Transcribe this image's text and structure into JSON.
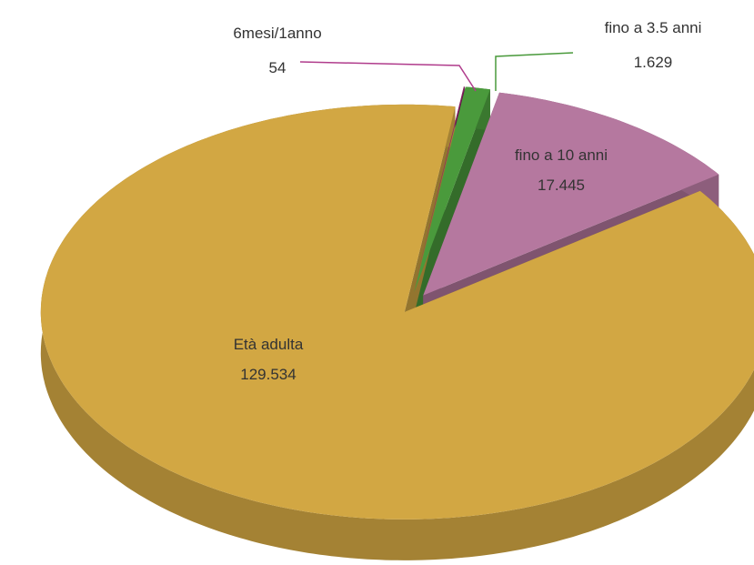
{
  "chart_data": {
    "type": "pie",
    "categories": [
      "6mesi/1anno",
      "fino a 3.5 anni",
      "fino a 10 anni",
      "Età adulta"
    ],
    "values": [
      54,
      1629,
      17445,
      129534
    ],
    "value_labels": [
      "54",
      "1.629",
      "17.445",
      "129.534"
    ],
    "colors": [
      "#8e2468",
      "#4a9a3c",
      "#b5789f",
      "#d2a743"
    ]
  }
}
